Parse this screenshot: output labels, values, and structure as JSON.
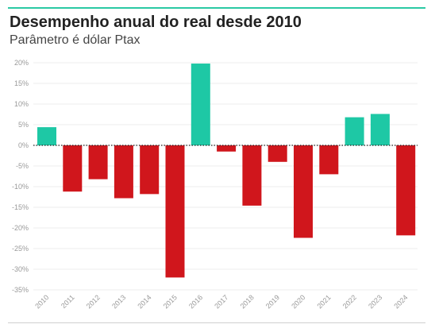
{
  "header": {
    "title": "Desempenho anual do real desde 2010",
    "subtitle": "Parâmetro é dólar Ptax"
  },
  "colors": {
    "positive": "#1ec8a5",
    "negative": "#d0161c",
    "accent_rule": "#2bc9a4",
    "grid": "#eeeeee",
    "zero_line": "#222222"
  },
  "chart_data": {
    "type": "bar",
    "title": "Desempenho anual do real desde 2010",
    "subtitle": "Parâmetro é dólar Ptax",
    "xlabel": "",
    "ylabel": "",
    "ylim": [
      -35,
      20
    ],
    "yticks": [
      20,
      15,
      10,
      5,
      0,
      -5,
      -10,
      -15,
      -20,
      -25,
      -30,
      -35
    ],
    "ytick_labels": [
      "20%",
      "15%",
      "10%",
      "5%",
      "0%",
      "-5%",
      "-10%",
      "-15%",
      "-20%",
      "-25%",
      "-30%",
      "-35%"
    ],
    "grid": true,
    "legend": "none",
    "categories": [
      "2010",
      "2011",
      "2012",
      "2013",
      "2014",
      "2015",
      "2016",
      "2017",
      "2018",
      "2019",
      "2020",
      "2021",
      "2022",
      "2023",
      "2024"
    ],
    "values": [
      4.4,
      -11.2,
      -8.2,
      -12.8,
      -11.8,
      -32.0,
      19.8,
      -1.5,
      -14.6,
      -4.0,
      -22.4,
      -7.0,
      6.8,
      7.6,
      -21.8
    ]
  }
}
